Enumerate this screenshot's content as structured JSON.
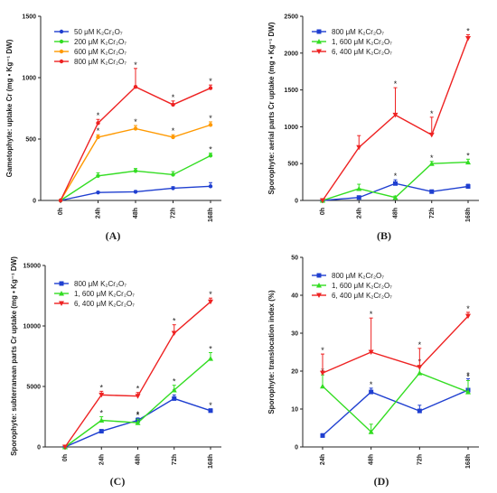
{
  "chart_data": [
    {
      "id": "A",
      "type": "line",
      "panel_label": "(A)",
      "ylabel": "Gametophyte: uptake Cr (mg • Kg⁻¹ DW)",
      "categories": [
        "0h",
        "24h",
        "48h",
        "72h",
        "168h"
      ],
      "ylim": [
        0,
        1500
      ],
      "yticks": [
        "0",
        "500",
        "1000",
        "1500"
      ],
      "legend_position": "top-left",
      "series": [
        {
          "name": "50 μM  K₂Cr₂O₇",
          "color": "#1f3fd0",
          "marker": "circle",
          "values": [
            0,
            65,
            70,
            100,
            115
          ],
          "errors": [
            0,
            8,
            10,
            12,
            30
          ],
          "stars": [
            false,
            false,
            false,
            false,
            false
          ]
        },
        {
          "name": "200 μM  K₂Cr₂O₇",
          "color": "#33dd22",
          "marker": "circle",
          "values": [
            0,
            200,
            240,
            210,
            365
          ],
          "errors": [
            0,
            25,
            20,
            25,
            20
          ],
          "stars": [
            false,
            false,
            false,
            false,
            true
          ]
        },
        {
          "name": "600 μM  K₂Cr₂O₇",
          "color": "#ff9900",
          "marker": "circle",
          "values": [
            0,
            515,
            585,
            515,
            615
          ],
          "errors": [
            0,
            20,
            25,
            20,
            25
          ],
          "stars": [
            false,
            true,
            true,
            true,
            true
          ]
        },
        {
          "name": "800 μM  K₂Cr₂O₇",
          "color": "#ee2222",
          "marker": "circle",
          "values": [
            0,
            630,
            925,
            780,
            915
          ],
          "errors": [
            0,
            30,
            150,
            30,
            25
          ],
          "stars": [
            false,
            true,
            true,
            true,
            true
          ]
        }
      ]
    },
    {
      "id": "B",
      "type": "line",
      "panel_label": "(B)",
      "ylabel": "Sporophyte: aerial parts Cr uptake (mg • Kg⁻¹ DW)",
      "categories": [
        "0h",
        "24h",
        "48h",
        "72h",
        "168h"
      ],
      "ylim": [
        0,
        2500
      ],
      "yticks": [
        "0",
        "500",
        "1000",
        "1500",
        "2000",
        "2500"
      ],
      "legend_position": "top-left",
      "series": [
        {
          "name": "800 μM  K₂Cr₂O₇",
          "color": "#1f3fd0",
          "marker": "square",
          "values": [
            0,
            40,
            230,
            120,
            190
          ],
          "errors": [
            0,
            10,
            50,
            20,
            30
          ],
          "stars": [
            false,
            false,
            true,
            false,
            false
          ]
        },
        {
          "name": "1, 600 μM  K₂Cr₂O₇",
          "color": "#33dd22",
          "marker": "triangle",
          "values": [
            0,
            160,
            40,
            500,
            520
          ],
          "errors": [
            0,
            60,
            20,
            30,
            40
          ],
          "stars": [
            false,
            false,
            false,
            true,
            true
          ]
        },
        {
          "name": "6, 400 μM  K₂Cr₂O₇",
          "color": "#ee2222",
          "marker": "triangle-down",
          "values": [
            0,
            720,
            1160,
            890,
            2200
          ],
          "errors": [
            0,
            160,
            370,
            240,
            50
          ],
          "stars": [
            false,
            false,
            true,
            true,
            true
          ]
        }
      ]
    },
    {
      "id": "C",
      "type": "line",
      "panel_label": "(C)",
      "ylabel": "Sporophyte: subterranean parts Cr uptake (mg • Kg⁻¹ DW)",
      "categories": [
        "0h",
        "24h",
        "48h",
        "72h",
        "168h"
      ],
      "ylim": [
        0,
        15000
      ],
      "yticks": [
        "0",
        "5000",
        "10000",
        "15000"
      ],
      "legend_position": "top-left",
      "series": [
        {
          "name": "800 μM  K₂Cr₂O₇",
          "color": "#1f3fd0",
          "marker": "square",
          "values": [
            0,
            1300,
            2200,
            4000,
            3000
          ],
          "errors": [
            0,
            100,
            200,
            300,
            150
          ],
          "stars": [
            false,
            false,
            true,
            true,
            true
          ]
        },
        {
          "name": "1, 600 μM  K₂Cr₂O₇",
          "color": "#33dd22",
          "marker": "triangle",
          "values": [
            0,
            2200,
            2000,
            4700,
            7300
          ],
          "errors": [
            0,
            300,
            300,
            400,
            500
          ],
          "stars": [
            false,
            true,
            true,
            true,
            true
          ]
        },
        {
          "name": "6, 400 μM  K₂Cr₂O₇",
          "color": "#ee2222",
          "marker": "triangle-down",
          "values": [
            0,
            4300,
            4200,
            9400,
            12000
          ],
          "errors": [
            0,
            300,
            300,
            700,
            300
          ],
          "stars": [
            false,
            true,
            true,
            true,
            true
          ]
        }
      ]
    },
    {
      "id": "D",
      "type": "line",
      "panel_label": "(D)",
      "ylabel": "Sporophyte: translocation index (%)",
      "categories": [
        "24h",
        "48h",
        "72h",
        "168h"
      ],
      "ylim": [
        0,
        50
      ],
      "yticks": [
        "0",
        "10",
        "20",
        "30",
        "40",
        "50"
      ],
      "legend_position": "top-left",
      "series": [
        {
          "name": "800 μM  K₂Cr₂O₇",
          "color": "#1f3fd0",
          "marker": "square",
          "values": [
            3,
            14.5,
            9.5,
            15
          ],
          "errors": [
            0.5,
            1,
            1.5,
            3
          ],
          "stars": [
            false,
            true,
            false,
            true
          ]
        },
        {
          "name": "1, 600 μM  K₂Cr₂O₇",
          "color": "#33dd22",
          "marker": "triangle",
          "values": [
            16,
            4,
            19.5,
            14.5
          ],
          "errors": [
            3,
            2,
            2,
            3
          ],
          "stars": [
            true,
            false,
            true,
            true
          ]
        },
        {
          "name": "6, 400 μM  K₂Cr₂O₇",
          "color": "#ee2222",
          "marker": "triangle-down",
          "values": [
            19.5,
            25,
            21,
            34.5
          ],
          "errors": [
            5,
            9,
            5,
            1
          ],
          "stars": [
            true,
            true,
            true,
            true
          ]
        }
      ]
    }
  ]
}
